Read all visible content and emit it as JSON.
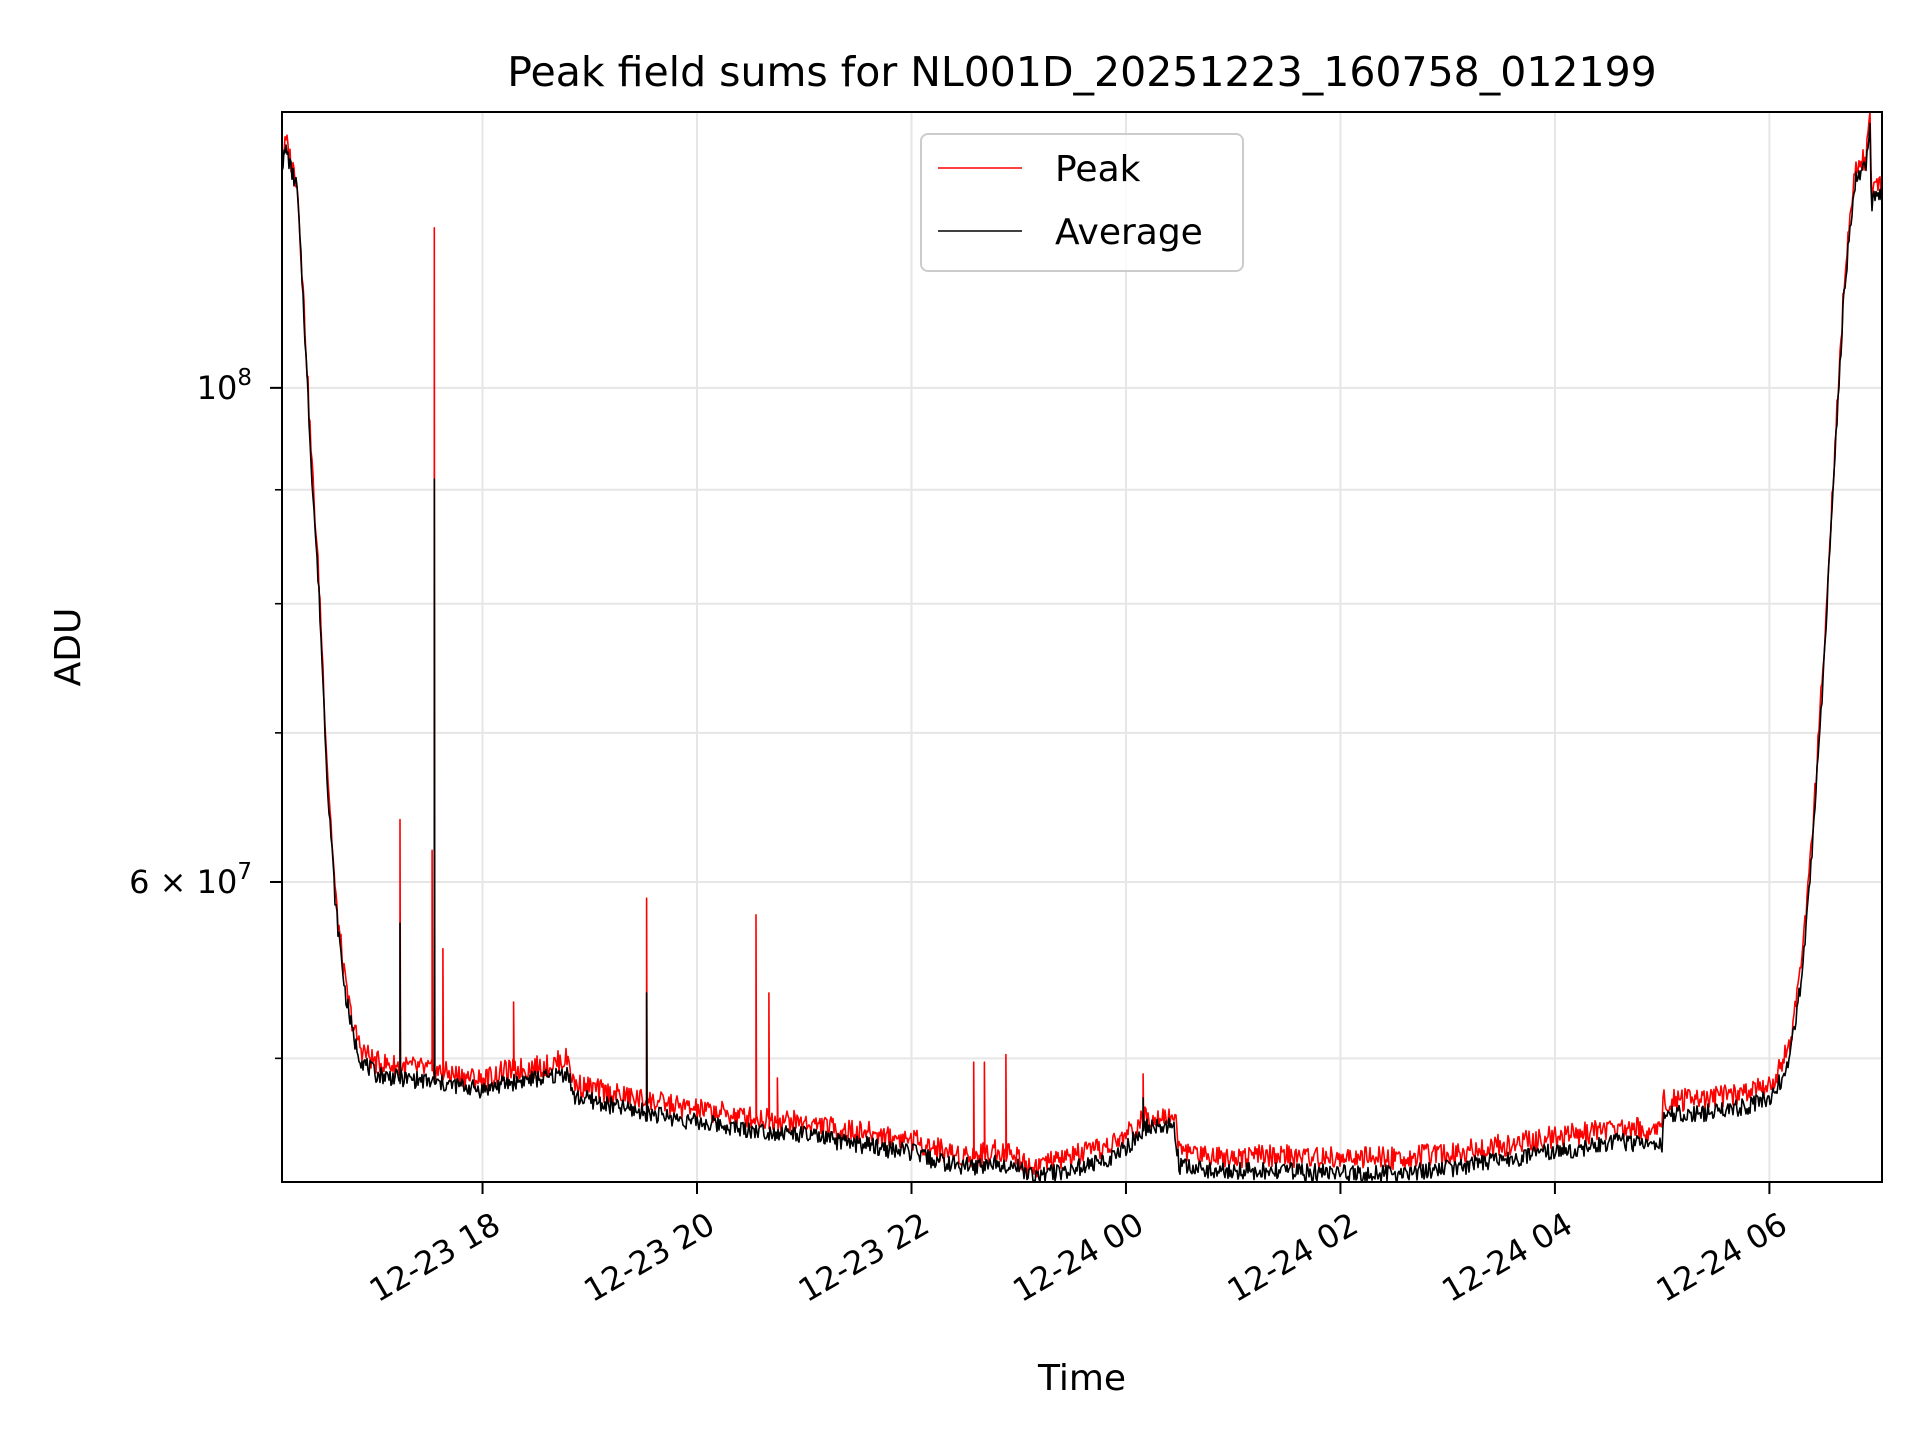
{
  "chart_data": {
    "type": "line",
    "title": "Peak field sums for NL001D_20251223_160758_012199",
    "xlabel": "Time",
    "ylabel": "ADU",
    "yscale": "log",
    "grid": true,
    "legend_position": "top-center",
    "colors": {
      "Peak": "#ff0000",
      "Average": "#000000",
      "grid": "#e6e6e6"
    },
    "xlim": [
      16.13,
      31.05
    ],
    "ylim": [
      44000000,
      133000000
    ],
    "x_ticks": [
      {
        "value": 18,
        "label": "12-23 18"
      },
      {
        "value": 20,
        "label": "12-23 20"
      },
      {
        "value": 22,
        "label": "12-23 22"
      },
      {
        "value": 24,
        "label": "12-24 00"
      },
      {
        "value": 26,
        "label": "12-24 02"
      },
      {
        "value": 28,
        "label": "12-24 04"
      },
      {
        "value": 30,
        "label": "12-24 06"
      }
    ],
    "y_major_ticks": [
      {
        "value": 100000000,
        "label": "10",
        "exp": "8"
      },
      {
        "value": 60000000,
        "label": "6 × 10",
        "exp": "7"
      }
    ],
    "y_minor_ticks": [
      50000000,
      70000000,
      80000000,
      90000000
    ],
    "x_units": "hours since 2025-12-23 00:00",
    "series": [
      {
        "name": "Peak",
        "x": [
          16.13,
          16.17,
          16.22,
          16.27,
          16.33,
          16.4,
          16.48,
          16.55,
          16.63,
          16.72,
          16.8,
          16.87,
          17,
          17.2,
          17.4,
          17.6,
          17.8,
          18,
          18.2,
          18.4,
          18.6,
          18.8,
          18.85,
          19,
          19.2,
          19.4,
          19.6,
          19.8,
          20,
          20.2,
          20.4,
          20.6,
          20.8,
          21,
          21.2,
          21.4,
          21.6,
          21.8,
          22,
          22.2,
          22.4,
          22.6,
          22.8,
          23,
          23.1,
          23.3,
          23.5,
          23.7,
          23.9,
          24,
          24.2,
          24.45,
          24.5,
          24.7,
          25,
          25.5,
          26,
          26.5,
          27,
          27.5,
          28,
          28.3,
          28.6,
          28.9,
          29,
          29.01,
          29.3,
          29.6,
          29.8,
          30,
          30.1,
          30.2,
          30.3,
          30.4,
          30.5,
          30.6,
          30.7,
          30.8,
          30.85,
          30.9,
          30.94,
          30.95,
          31.0,
          31.05
        ],
        "y": [
          127000000,
          129000000,
          126000000,
          124000000,
          110000000,
          94000000,
          81000000,
          68000000,
          59000000,
          54000000,
          51500000,
          50500000,
          49800000,
          49600000,
          49500000,
          49300000,
          49100000,
          48900000,
          49300000,
          49500000,
          49600000,
          50000000,
          48700000,
          48500000,
          48200000,
          48000000,
          47800000,
          47600000,
          47400000,
          47300000,
          47100000,
          47000000,
          46900000,
          46800000,
          46600000,
          46400000,
          46300000,
          46100000,
          46000000,
          45600000,
          45300000,
          45200000,
          45500000,
          45200000,
          44700000,
          44900000,
          45200000,
          45400000,
          45800000,
          46200000,
          47100000,
          47200000,
          45500000,
          45300000,
          45200000,
          45200000,
          45100000,
          45100000,
          45300000,
          45700000,
          46100000,
          46300000,
          46600000,
          46400000,
          46500000,
          47900000,
          47900000,
          48100000,
          48300000,
          48700000,
          49500000,
          51000000,
          55000000,
          63000000,
          75000000,
          92000000,
          112000000,
          125000000,
          126000000,
          127000000,
          133000000,
          122000000,
          123000000,
          123500000
        ],
        "spikes": [
          {
            "x": 17.23,
            "y": 64000000
          },
          {
            "x": 17.55,
            "y": 118000000
          },
          {
            "x": 17.53,
            "y": 62000000
          },
          {
            "x": 17.63,
            "y": 56000000
          },
          {
            "x": 18.29,
            "y": 53000000
          },
          {
            "x": 19.53,
            "y": 59000000
          },
          {
            "x": 20.55,
            "y": 58000000
          },
          {
            "x": 20.67,
            "y": 53500000
          },
          {
            "x": 20.75,
            "y": 49000000
          },
          {
            "x": 22.58,
            "y": 49800000
          },
          {
            "x": 22.68,
            "y": 49800000
          },
          {
            "x": 22.88,
            "y": 50200000
          },
          {
            "x": 24.16,
            "y": 49200000
          }
        ]
      },
      {
        "name": "Average",
        "x": [
          16.13,
          16.17,
          16.22,
          16.27,
          16.33,
          16.4,
          16.48,
          16.55,
          16.63,
          16.72,
          16.8,
          16.87,
          17,
          17.2,
          17.4,
          17.6,
          17.8,
          18,
          18.2,
          18.4,
          18.6,
          18.8,
          18.85,
          19,
          19.2,
          19.4,
          19.6,
          19.8,
          20,
          20.2,
          20.4,
          20.6,
          20.8,
          21,
          21.2,
          21.4,
          21.6,
          21.8,
          22,
          22.2,
          22.4,
          22.6,
          22.8,
          23,
          23.1,
          23.3,
          23.5,
          23.7,
          23.9,
          24,
          24.2,
          24.45,
          24.5,
          24.7,
          25,
          25.5,
          26,
          26.5,
          27,
          27.5,
          28,
          28.3,
          28.6,
          28.9,
          29,
          29.01,
          29.3,
          29.6,
          29.8,
          30,
          30.1,
          30.2,
          30.3,
          30.4,
          30.5,
          30.6,
          30.7,
          30.8,
          30.85,
          30.9,
          30.94,
          30.95,
          31.0,
          31.05
        ],
        "y": [
          126000000,
          128000000,
          125000000,
          123000000,
          109000000,
          93000000,
          80000000,
          67000000,
          58500000,
          53500000,
          51000000,
          49900000,
          49200000,
          49000000,
          48900000,
          48700000,
          48600000,
          48400000,
          48700000,
          48900000,
          49000000,
          49300000,
          48000000,
          47900000,
          47600000,
          47400000,
          47200000,
          47000000,
          46800000,
          46700000,
          46500000,
          46400000,
          46300000,
          46200000,
          46000000,
          45800000,
          45700000,
          45500000,
          45400000,
          45000000,
          44800000,
          44700000,
          44900000,
          44700000,
          44300000,
          44400000,
          44600000,
          44800000,
          45200000,
          45600000,
          46600000,
          46600000,
          44700000,
          44600000,
          44500000,
          44500000,
          44400000,
          44400000,
          44600000,
          45000000,
          45400000,
          45600000,
          45900000,
          45700000,
          45800000,
          47200000,
          47200000,
          47400000,
          47600000,
          48000000,
          48800000,
          50300000,
          54300000,
          62000000,
          74000000,
          91000000,
          111000000,
          124000000,
          125000000,
          126000000,
          132000000,
          121000000,
          122000000,
          122500000
        ],
        "spikes": [
          {
            "x": 17.23,
            "y": 57500000
          },
          {
            "x": 17.55,
            "y": 91000000
          },
          {
            "x": 19.53,
            "y": 53500000
          },
          {
            "x": 24.16,
            "y": 48000000
          }
        ]
      }
    ]
  }
}
